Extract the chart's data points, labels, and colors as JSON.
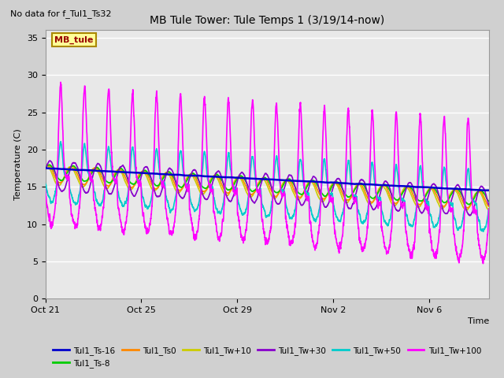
{
  "title": "MB Tule Tower: Tule Temps 1 (3/19/14-now)",
  "no_data_text": "No data for f_Tul1_Ts32",
  "ylabel": "Temperature (C)",
  "xlabel": "Time",
  "ylim": [
    0,
    36
  ],
  "yticks": [
    0,
    5,
    10,
    15,
    20,
    25,
    30,
    35
  ],
  "xlim_days": [
    0,
    18.5
  ],
  "x_tick_labels": [
    "Oct 21",
    "Oct 25",
    "Oct 29",
    "Nov 2",
    "Nov 6"
  ],
  "x_tick_positions": [
    0,
    4,
    8,
    12,
    16
  ],
  "fig_bg_color": "#d0d0d0",
  "plot_bg_color": "#e8e8e8",
  "grid_color": "#ffffff",
  "series": [
    {
      "label": "Tul1_Ts-16",
      "color": "#0000cc",
      "linewidth": 1.8
    },
    {
      "label": "Tul1_Ts-8",
      "color": "#00cc00",
      "linewidth": 1.2
    },
    {
      "label": "Tul1_Ts0",
      "color": "#ff8800",
      "linewidth": 1.2
    },
    {
      "label": "Tul1_Tw+10",
      "color": "#cccc00",
      "linewidth": 1.2
    },
    {
      "label": "Tul1_Tw+30",
      "color": "#8800cc",
      "linewidth": 1.2
    },
    {
      "label": "Tul1_Tw+50",
      "color": "#00cccc",
      "linewidth": 1.2
    },
    {
      "label": "Tul1_Tw+100",
      "color": "#ff00ff",
      "linewidth": 1.2
    }
  ],
  "legend_box_label": "MB_tule",
  "legend_box_color": "#ffff99",
  "legend_box_border": "#aa8800"
}
